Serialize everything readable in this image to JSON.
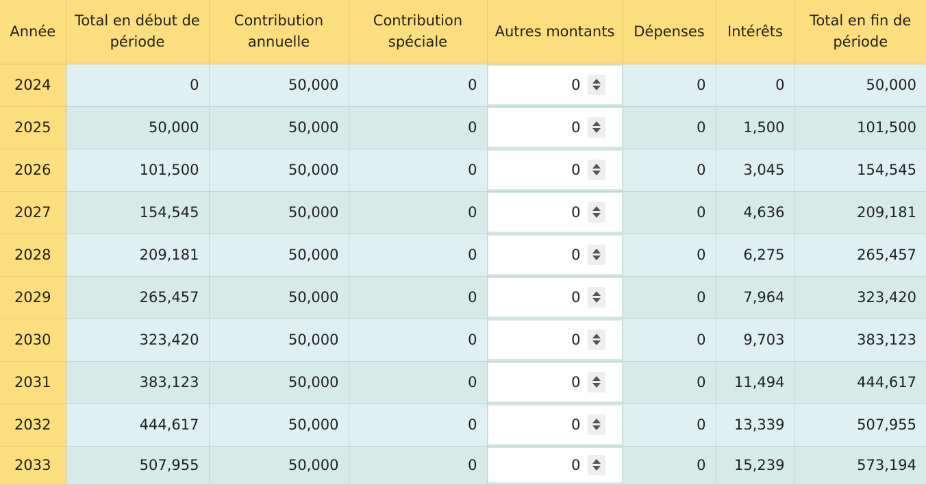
{
  "columns": [
    "Année",
    "Total en début de période",
    "Contribution annuelle",
    "Contribution spéciale",
    "Autres montants",
    "Dépenses",
    "Intérêts",
    "Total en fin de période"
  ],
  "rows": [
    {
      "year": "2024",
      "start": "0",
      "annual": "50,000",
      "special": "0",
      "other": "0",
      "expenses": "0",
      "interest": "0",
      "end": "50,000"
    },
    {
      "year": "2025",
      "start": "50,000",
      "annual": "50,000",
      "special": "0",
      "other": "0",
      "expenses": "0",
      "interest": "1,500",
      "end": "101,500"
    },
    {
      "year": "2026",
      "start": "101,500",
      "annual": "50,000",
      "special": "0",
      "other": "0",
      "expenses": "0",
      "interest": "3,045",
      "end": "154,545"
    },
    {
      "year": "2027",
      "start": "154,545",
      "annual": "50,000",
      "special": "0",
      "other": "0",
      "expenses": "0",
      "interest": "4,636",
      "end": "209,181"
    },
    {
      "year": "2028",
      "start": "209,181",
      "annual": "50,000",
      "special": "0",
      "other": "0",
      "expenses": "0",
      "interest": "6,275",
      "end": "265,457"
    },
    {
      "year": "2029",
      "start": "265,457",
      "annual": "50,000",
      "special": "0",
      "other": "0",
      "expenses": "0",
      "interest": "7,964",
      "end": "323,420"
    },
    {
      "year": "2030",
      "start": "323,420",
      "annual": "50,000",
      "special": "0",
      "other": "0",
      "expenses": "0",
      "interest": "9,703",
      "end": "383,123"
    },
    {
      "year": "2031",
      "start": "383,123",
      "annual": "50,000",
      "special": "0",
      "other": "0",
      "expenses": "0",
      "interest": "11,494",
      "end": "444,617"
    },
    {
      "year": "2032",
      "start": "444,617",
      "annual": "50,000",
      "special": "0",
      "other": "0",
      "expenses": "0",
      "interest": "13,339",
      "end": "507,955"
    },
    {
      "year": "2033",
      "start": "507,955",
      "annual": "50,000",
      "special": "0",
      "other": "0",
      "expenses": "0",
      "interest": "15,239",
      "end": "573,194"
    }
  ],
  "colors": {
    "header_bg": "#fbdf7e",
    "row_light": "#dff0f3",
    "row_dark": "#d6ebe7",
    "input_bg": "#ffffff"
  },
  "icons": {
    "stepper": "up-down-stepper-icon"
  }
}
